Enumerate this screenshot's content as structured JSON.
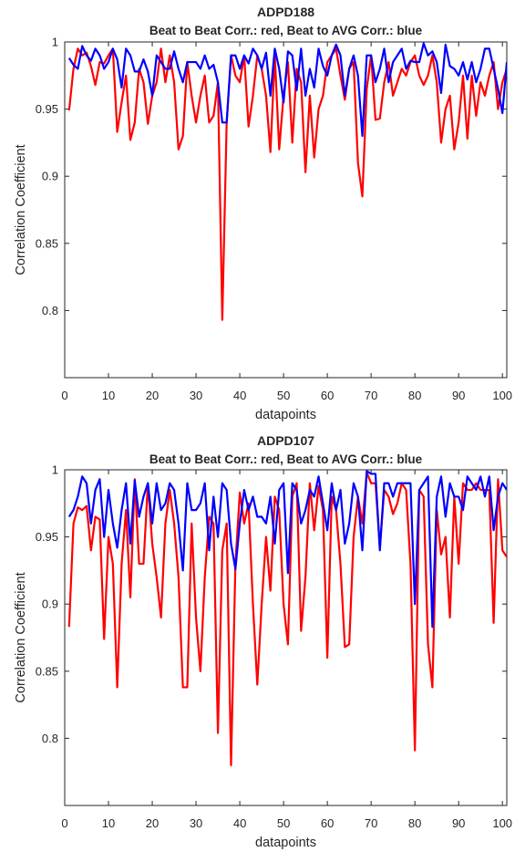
{
  "chart_data": [
    {
      "type": "line",
      "title": "ADPD188",
      "subtitle": "Beat to Beat Corr.: red, Beat to AVG Corr.: blue",
      "xlabel": "datapoints",
      "ylabel": "Correlation Coefficient",
      "xlim": [
        0,
        101
      ],
      "ylim": [
        0.75,
        1.0
      ],
      "xticks": [
        "0",
        "10",
        "20",
        "30",
        "40",
        "50",
        "60",
        "70",
        "80",
        "90",
        "100"
      ],
      "yticks": [
        "0.8",
        "0.85",
        "0.9",
        "0.95",
        "1"
      ],
      "grid": false,
      "x": [
        1,
        2,
        3,
        4,
        5,
        6,
        7,
        8,
        9,
        10,
        11,
        12,
        13,
        14,
        15,
        16,
        17,
        18,
        19,
        20,
        21,
        22,
        23,
        24,
        25,
        26,
        27,
        28,
        29,
        30,
        31,
        32,
        33,
        34,
        35,
        36,
        37,
        38,
        39,
        40,
        41,
        42,
        43,
        44,
        45,
        46,
        47,
        48,
        49,
        50,
        51,
        52,
        53,
        54,
        55,
        56,
        57,
        58,
        59,
        60,
        61,
        62,
        63,
        64,
        65,
        66,
        67,
        68,
        69,
        70,
        71,
        72,
        73,
        74,
        75,
        76,
        77,
        78,
        79,
        80,
        81,
        82,
        83,
        84,
        85,
        86,
        87,
        88,
        89,
        90,
        91,
        92,
        93,
        94,
        95,
        96,
        97,
        98,
        99,
        100,
        101
      ],
      "series": [
        {
          "color": "#ff0000",
          "values": [
            0.949,
            0.98,
            0.995,
            0.99,
            0.992,
            0.982,
            0.968,
            0.985,
            0.984,
            0.99,
            0.995,
            0.933,
            0.955,
            0.975,
            0.927,
            0.94,
            0.98,
            0.97,
            0.939,
            0.96,
            0.97,
            0.995,
            0.97,
            0.99,
            0.97,
            0.92,
            0.93,
            0.985,
            0.96,
            0.94,
            0.96,
            0.975,
            0.94,
            0.945,
            0.97,
            0.793,
            0.94,
            0.99,
            0.975,
            0.97,
            0.99,
            0.937,
            0.96,
            0.99,
            0.98,
            0.96,
            0.918,
            0.99,
            0.92,
            0.96,
            0.985,
            0.925,
            0.98,
            0.97,
            0.903,
            0.96,
            0.914,
            0.95,
            0.96,
            0.985,
            0.99,
            0.995,
            0.975,
            0.957,
            0.98,
            0.985,
            0.91,
            0.885,
            0.965,
            0.99,
            0.942,
            0.943,
            0.97,
            0.985,
            0.96,
            0.97,
            0.98,
            0.975,
            0.985,
            0.99,
            0.975,
            0.968,
            0.975,
            0.99,
            0.97,
            0.925,
            0.95,
            0.96,
            0.92,
            0.94,
            0.975,
            0.928,
            0.975,
            0.945,
            0.97,
            0.96,
            0.975,
            0.985,
            0.95,
            0.97,
            0.98
          ]
        },
        {
          "color": "#0000ff",
          "values": [
            0.988,
            0.983,
            0.98,
            0.997,
            0.99,
            0.986,
            0.995,
            0.99,
            0.98,
            0.985,
            0.995,
            0.987,
            0.966,
            0.995,
            0.99,
            0.978,
            0.978,
            0.987,
            0.978,
            0.96,
            0.99,
            0.985,
            0.98,
            0.98,
            0.993,
            0.98,
            0.97,
            0.985,
            0.985,
            0.985,
            0.98,
            0.99,
            0.98,
            0.983,
            0.97,
            0.94,
            0.94,
            0.99,
            0.99,
            0.98,
            0.99,
            0.984,
            0.995,
            0.99,
            0.98,
            0.992,
            0.96,
            0.995,
            0.98,
            0.955,
            0.993,
            0.99,
            0.964,
            0.995,
            0.96,
            0.98,
            0.966,
            0.995,
            0.982,
            0.975,
            0.99,
            0.998,
            0.99,
            0.96,
            0.98,
            0.99,
            0.975,
            0.93,
            0.99,
            0.99,
            0.97,
            0.98,
            0.995,
            0.97,
            0.985,
            0.99,
            0.995,
            0.98,
            0.986,
            0.985,
            0.985,
            0.999,
            0.99,
            0.993,
            0.985,
            0.962,
            0.998,
            0.982,
            0.98,
            0.975,
            0.985,
            0.972,
            0.985,
            0.97,
            0.98,
            0.995,
            0.995,
            0.98,
            0.965,
            0.947,
            0.985
          ]
        }
      ]
    },
    {
      "type": "line",
      "title": "ADPD107",
      "subtitle": "Beat to Beat Corr.: red, Beat to AVG Corr.: blue",
      "xlabel": "datapoints",
      "ylabel": "Correlation Coefficient",
      "xlim": [
        0,
        101
      ],
      "ylim": [
        0.75,
        1.0
      ],
      "xticks": [
        "0",
        "10",
        "20",
        "30",
        "40",
        "50",
        "60",
        "70",
        "80",
        "90",
        "100"
      ],
      "yticks": [
        "0.8",
        "0.85",
        "0.9",
        "0.95",
        "1"
      ],
      "grid": false,
      "x": [
        1,
        2,
        3,
        4,
        5,
        6,
        7,
        8,
        9,
        10,
        11,
        12,
        13,
        14,
        15,
        16,
        17,
        18,
        19,
        20,
        21,
        22,
        23,
        24,
        25,
        26,
        27,
        28,
        29,
        30,
        31,
        32,
        33,
        34,
        35,
        36,
        37,
        38,
        39,
        40,
        41,
        42,
        43,
        44,
        45,
        46,
        47,
        48,
        49,
        50,
        51,
        52,
        53,
        54,
        55,
        56,
        57,
        58,
        59,
        60,
        61,
        62,
        63,
        64,
        65,
        66,
        67,
        68,
        69,
        70,
        71,
        72,
        73,
        74,
        75,
        76,
        77,
        78,
        79,
        80,
        81,
        82,
        83,
        84,
        85,
        86,
        87,
        88,
        89,
        90,
        91,
        92,
        93,
        94,
        95,
        96,
        97,
        98,
        99,
        100,
        101
      ],
      "series": [
        {
          "color": "#ff0000",
          "values": [
            0.883,
            0.96,
            0.972,
            0.97,
            0.973,
            0.94,
            0.965,
            0.963,
            0.874,
            0.95,
            0.93,
            0.838,
            0.93,
            0.97,
            0.905,
            0.993,
            0.93,
            0.93,
            0.99,
            0.945,
            0.92,
            0.89,
            0.96,
            0.985,
            0.96,
            0.92,
            0.838,
            0.838,
            0.96,
            0.89,
            0.85,
            0.92,
            0.965,
            0.96,
            0.804,
            0.94,
            0.96,
            0.78,
            0.93,
            0.983,
            0.96,
            0.975,
            0.9,
            0.84,
            0.9,
            0.95,
            0.91,
            0.98,
            0.97,
            0.9,
            0.87,
            0.98,
            0.99,
            0.88,
            0.92,
            0.99,
            0.955,
            0.988,
            0.97,
            0.86,
            0.98,
            0.97,
            0.93,
            0.868,
            0.87,
            0.95,
            0.98,
            0.96,
            0.998,
            0.99,
            0.99,
            0.942,
            0.985,
            0.98,
            0.967,
            0.975,
            0.99,
            0.985,
            0.93,
            0.791,
            0.985,
            0.98,
            0.87,
            0.838,
            0.97,
            0.937,
            0.95,
            0.89,
            0.98,
            0.93,
            0.99,
            0.985,
            0.985,
            0.99,
            0.985,
            0.985,
            0.985,
            0.886,
            0.993,
            0.94,
            0.935
          ]
        },
        {
          "color": "#0000ff",
          "values": [
            0.965,
            0.97,
            0.98,
            0.995,
            0.99,
            0.96,
            0.985,
            0.993,
            0.95,
            0.985,
            0.96,
            0.942,
            0.97,
            0.99,
            0.945,
            0.992,
            0.965,
            0.98,
            0.99,
            0.96,
            0.99,
            0.97,
            0.975,
            0.99,
            0.985,
            0.96,
            0.925,
            0.99,
            0.97,
            0.97,
            0.975,
            0.99,
            0.94,
            0.98,
            0.95,
            0.99,
            0.985,
            0.945,
            0.926,
            0.96,
            0.985,
            0.97,
            0.98,
            0.965,
            0.965,
            0.96,
            0.98,
            0.945,
            0.985,
            0.99,
            0.923,
            0.99,
            0.985,
            0.96,
            0.97,
            0.985,
            0.98,
            0.995,
            0.975,
            0.955,
            0.99,
            0.97,
            0.985,
            0.945,
            0.96,
            0.99,
            0.98,
            0.94,
            0.999,
            0.997,
            0.997,
            0.94,
            0.99,
            0.99,
            0.98,
            0.99,
            0.99,
            0.99,
            0.99,
            0.9,
            0.985,
            0.99,
            0.995,
            0.883,
            0.98,
            0.995,
            0.965,
            0.99,
            0.98,
            0.98,
            0.97,
            0.995,
            0.99,
            0.985,
            0.995,
            0.98,
            0.995,
            0.955,
            0.98,
            0.99,
            0.985
          ]
        }
      ]
    }
  ]
}
